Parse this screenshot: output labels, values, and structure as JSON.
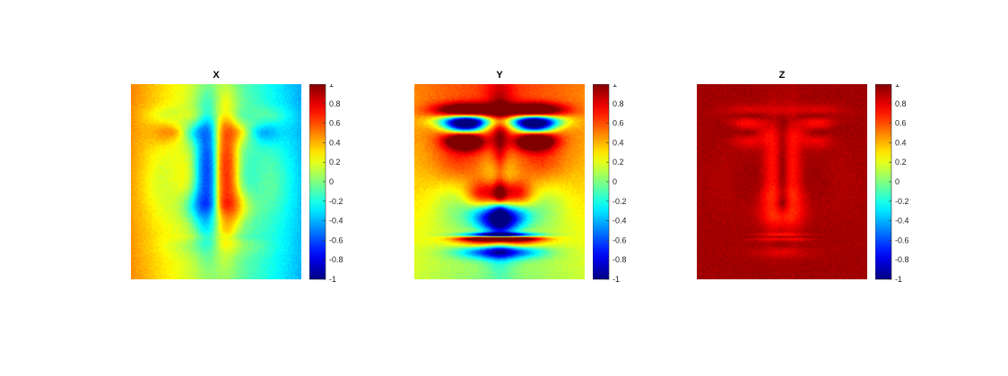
{
  "colormap": "jet",
  "chart_data": [
    {
      "type": "heatmap",
      "title": "X",
      "clim": [
        -1,
        1
      ],
      "colorbar_ticks": [
        "1",
        "0.8",
        "0.6",
        "0.4",
        "0.2",
        "0",
        "-0.2",
        "-0.4",
        "-0.6",
        "-0.8",
        "-1"
      ],
      "value_pattern": "horizontal gradient from ~0.7 (left) to ~-0.6 (right), sign flips across nose/eye edges"
    },
    {
      "type": "heatmap",
      "title": "Y",
      "clim": [
        -1,
        1
      ],
      "colorbar_ticks": [
        "1",
        "0.8",
        "0.6",
        "0.4",
        "0.2",
        "0",
        "-0.2",
        "-0.4",
        "-0.6",
        "-0.8",
        "-1"
      ],
      "value_pattern": "vertical gradient: ~0.6 on upward-facing surfaces (nose bridge, cheeks), ~-0.3 under brows, nostrils and lips"
    },
    {
      "type": "heatmap",
      "title": "Z",
      "clim": [
        -1,
        1
      ],
      "colorbar_ticks": [
        "1",
        "0.8",
        "0.6",
        "0.4",
        "0.2",
        "0",
        "-0.2",
        "-0.4",
        "-0.6",
        "-0.8",
        "-1"
      ],
      "value_pattern": "mostly ~0.85–0.95 (facing viewer), slightly lower (~0.75) around nose sides and eye sockets"
    }
  ]
}
